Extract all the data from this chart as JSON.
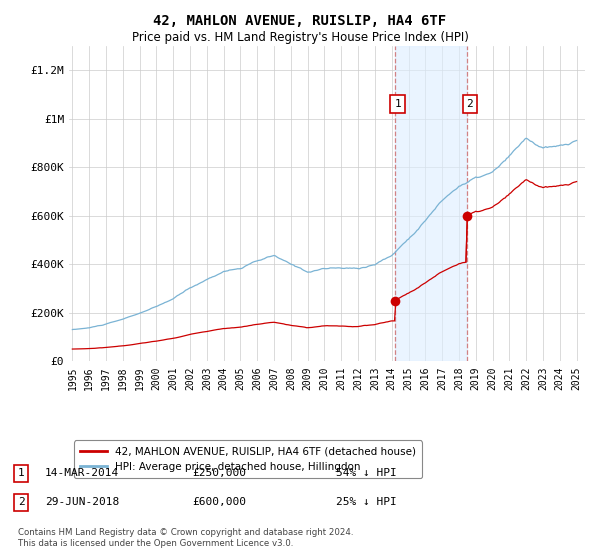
{
  "title": "42, MAHLON AVENUE, RUISLIP, HA4 6TF",
  "subtitle": "Price paid vs. HM Land Registry's House Price Index (HPI)",
  "title_fontsize": 10,
  "subtitle_fontsize": 8.5,
  "ylabel_ticks": [
    "£0",
    "£200K",
    "£400K",
    "£600K",
    "£800K",
    "£1M",
    "£1.2M"
  ],
  "ylabel_values": [
    0,
    200000,
    400000,
    600000,
    800000,
    1000000,
    1200000
  ],
  "ylim": [
    0,
    1300000
  ],
  "xlim_start": 1994.8,
  "xlim_end": 2025.5,
  "background_color": "#ffffff",
  "plot_bg_color": "#ffffff",
  "grid_color": "#cccccc",
  "hpi_color": "#7ab3d4",
  "price_color": "#cc0000",
  "sale1_x": 2014.2,
  "sale1_y": 250000,
  "sale2_x": 2018.5,
  "sale2_y": 600000,
  "shade_color": "#ddeeff",
  "shade_alpha": 0.6,
  "legend_label_price": "42, MAHLON AVENUE, RUISLIP, HA4 6TF (detached house)",
  "legend_label_hpi": "HPI: Average price, detached house, Hillingdon",
  "note1_label": "1",
  "note1_date": "14-MAR-2014",
  "note1_price": "£250,000",
  "note1_hpi": "54% ↓ HPI",
  "note2_label": "2",
  "note2_date": "29-JUN-2018",
  "note2_price": "£600,000",
  "note2_hpi": "25% ↓ HPI",
  "footer": "Contains HM Land Registry data © Crown copyright and database right 2024.\nThis data is licensed under the Open Government Licence v3.0."
}
